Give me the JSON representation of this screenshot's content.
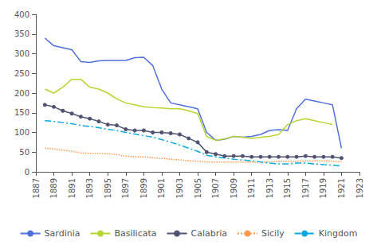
{
  "chart_data": {
    "type": "line",
    "x": [
      1887,
      1888,
      1889,
      1890,
      1891,
      1892,
      1893,
      1894,
      1895,
      1896,
      1897,
      1898,
      1899,
      1900,
      1901,
      1902,
      1903,
      1904,
      1905,
      1906,
      1907,
      1908,
      1909,
      1910,
      1911,
      1912,
      1913,
      1914,
      1915,
      1916,
      1917,
      1918,
      1919,
      1920,
      1921,
      1922,
      1923
    ],
    "series": [
      {
        "name": "Sardinia",
        "line_style": "solid",
        "marker": "none",
        "values": [
          null,
          340,
          320,
          315,
          310,
          280,
          278,
          282,
          283,
          283,
          283,
          290,
          291,
          270,
          210,
          175,
          170,
          165,
          160,
          100,
          80,
          83,
          90,
          88,
          90,
          95,
          105,
          107,
          105,
          160,
          185,
          180,
          175,
          170,
          60,
          null,
          null
        ]
      },
      {
        "name": "Basilicata",
        "line_style": "solid",
        "marker": "none",
        "values": [
          null,
          210,
          200,
          215,
          235,
          235,
          215,
          210,
          200,
          185,
          175,
          170,
          165,
          163,
          162,
          160,
          160,
          155,
          148,
          90,
          80,
          84,
          90,
          88,
          85,
          88,
          90,
          95,
          120,
          130,
          135,
          130,
          125,
          120,
          null,
          null,
          null
        ]
      },
      {
        "name": "Calabria",
        "line_style": "solid",
        "marker": "circle",
        "values": [
          null,
          170,
          165,
          155,
          148,
          140,
          135,
          128,
          120,
          118,
          108,
          105,
          105,
          100,
          100,
          98,
          95,
          85,
          75,
          50,
          45,
          40,
          40,
          40,
          38,
          38,
          38,
          38,
          38,
          38,
          40,
          38,
          38,
          38,
          35,
          null,
          null
        ]
      },
      {
        "name": "Sicily",
        "line_style": "dotted",
        "marker": "none",
        "values": [
          null,
          60,
          58,
          55,
          52,
          48,
          47,
          47,
          46,
          44,
          40,
          38,
          38,
          36,
          34,
          32,
          30,
          28,
          27,
          25,
          25,
          25,
          25,
          25,
          25,
          25,
          25,
          27,
          27,
          27,
          28,
          28,
          28,
          27,
          26,
          null,
          null
        ]
      },
      {
        "name": "Kingdom",
        "line_style": "dashdot",
        "marker": "none",
        "values": [
          null,
          130,
          128,
          125,
          122,
          118,
          115,
          112,
          108,
          105,
          100,
          96,
          92,
          88,
          82,
          75,
          68,
          60,
          52,
          42,
          38,
          35,
          32,
          30,
          28,
          25,
          22,
          20,
          20,
          22,
          22,
          20,
          18,
          17,
          15,
          null,
          null
        ]
      }
    ],
    "xlim": [
      1887,
      1923
    ],
    "xticks": [
      1887,
      1889,
      1891,
      1893,
      1895,
      1897,
      1899,
      1901,
      1903,
      1905,
      1907,
      1909,
      1911,
      1913,
      1915,
      1917,
      1919,
      1921,
      1923
    ],
    "ylim": [
      0,
      400
    ],
    "yticks": [
      0,
      50,
      100,
      150,
      200,
      250,
      300,
      350,
      400
    ],
    "grid": false,
    "legend": "bottom"
  }
}
